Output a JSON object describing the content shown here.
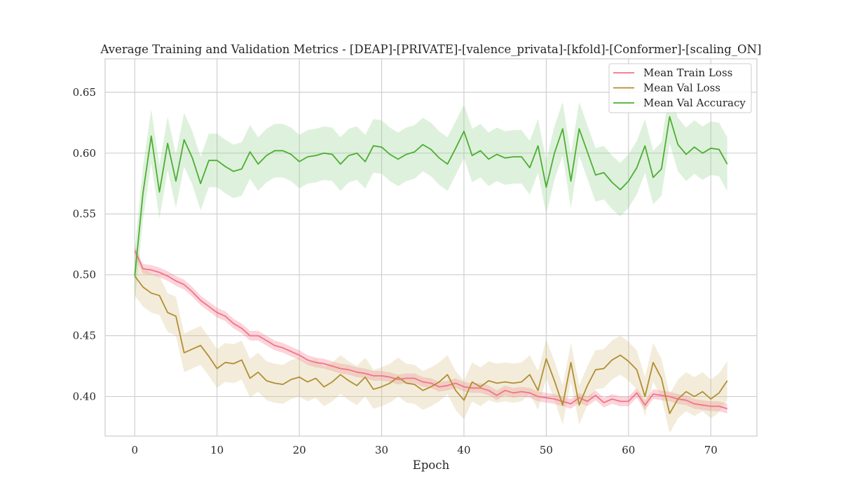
{
  "chart_data": {
    "type": "line",
    "title": "Average Training and Validation Metrics - [DEAP]-[PRIVATE]-[valence_privata]-[kfold]-[Conformer]-[scaling_ON]",
    "xlabel": "Epoch",
    "ylabel": "",
    "xlim": [
      -3.6,
      75.6
    ],
    "ylim": [
      0.3675,
      0.6775
    ],
    "xticks": [
      0,
      10,
      20,
      30,
      40,
      50,
      60,
      70
    ],
    "yticks": [
      0.4,
      0.45,
      0.5,
      0.55,
      0.6,
      0.65
    ],
    "xtick_labels": [
      "0",
      "10",
      "20",
      "30",
      "40",
      "50",
      "60",
      "70"
    ],
    "ytick_labels": [
      "0.40",
      "0.45",
      "0.50",
      "0.55",
      "0.60",
      "0.65"
    ],
    "grid": true,
    "legend_position": "top-right",
    "x": [
      0,
      1,
      2,
      3,
      4,
      5,
      6,
      7,
      8,
      9,
      10,
      11,
      12,
      13,
      14,
      15,
      16,
      17,
      18,
      19,
      20,
      21,
      22,
      23,
      24,
      25,
      26,
      27,
      28,
      29,
      30,
      31,
      32,
      33,
      34,
      35,
      36,
      37,
      38,
      39,
      40,
      41,
      42,
      43,
      44,
      45,
      46,
      47,
      48,
      49,
      50,
      51,
      52,
      53,
      54,
      55,
      56,
      57,
      58,
      59,
      60,
      61,
      62,
      63,
      64,
      65,
      66,
      67,
      68,
      69,
      70,
      71,
      72
    ],
    "series": [
      {
        "name": "Mean Train Loss",
        "color": "#f37387",
        "band_color": "#f37387",
        "values": [
          0.52,
          0.505,
          0.504,
          0.502,
          0.499,
          0.495,
          0.492,
          0.486,
          0.479,
          0.474,
          0.469,
          0.466,
          0.46,
          0.456,
          0.45,
          0.45,
          0.446,
          0.442,
          0.44,
          0.437,
          0.434,
          0.43,
          0.428,
          0.427,
          0.425,
          0.423,
          0.422,
          0.42,
          0.419,
          0.417,
          0.417,
          0.416,
          0.414,
          0.415,
          0.415,
          0.412,
          0.411,
          0.408,
          0.409,
          0.411,
          0.408,
          0.407,
          0.407,
          0.405,
          0.401,
          0.405,
          0.403,
          0.404,
          0.403,
          0.4,
          0.399,
          0.398,
          0.396,
          0.394,
          0.399,
          0.396,
          0.401,
          0.395,
          0.398,
          0.396,
          0.396,
          0.403,
          0.393,
          0.402,
          0.401,
          0.4,
          0.398,
          0.397,
          0.394,
          0.393,
          0.392,
          0.392,
          0.39
        ],
        "band": 0.004
      },
      {
        "name": "Mean Val Loss",
        "color": "#b28e32",
        "band_color": "#d8c089",
        "values": [
          0.499,
          0.49,
          0.485,
          0.483,
          0.469,
          0.466,
          0.436,
          0.439,
          0.442,
          0.433,
          0.423,
          0.428,
          0.427,
          0.43,
          0.415,
          0.42,
          0.413,
          0.411,
          0.41,
          0.414,
          0.416,
          0.412,
          0.415,
          0.408,
          0.412,
          0.418,
          0.413,
          0.409,
          0.416,
          0.406,
          0.408,
          0.411,
          0.416,
          0.411,
          0.41,
          0.405,
          0.408,
          0.412,
          0.418,
          0.405,
          0.397,
          0.412,
          0.408,
          0.413,
          0.411,
          0.412,
          0.411,
          0.412,
          0.418,
          0.405,
          0.431,
          0.413,
          0.393,
          0.428,
          0.393,
          0.409,
          0.422,
          0.423,
          0.43,
          0.434,
          0.429,
          0.422,
          0.4,
          0.428,
          0.415,
          0.386,
          0.398,
          0.404,
          0.4,
          0.404,
          0.398,
          0.403,
          0.413
        ],
        "band": 0.016
      },
      {
        "name": "Mean Val Accuracy",
        "color": "#4cae33",
        "band_color": "#93d18a",
        "values": [
          0.499,
          0.567,
          0.614,
          0.568,
          0.608,
          0.577,
          0.611,
          0.596,
          0.575,
          0.594,
          0.594,
          0.589,
          0.585,
          0.587,
          0.601,
          0.591,
          0.598,
          0.602,
          0.602,
          0.599,
          0.593,
          0.597,
          0.598,
          0.6,
          0.599,
          0.591,
          0.598,
          0.6,
          0.593,
          0.606,
          0.605,
          0.599,
          0.595,
          0.599,
          0.601,
          0.607,
          0.603,
          0.596,
          0.591,
          0.604,
          0.618,
          0.598,
          0.602,
          0.595,
          0.599,
          0.596,
          0.597,
          0.597,
          0.588,
          0.606,
          0.572,
          0.6,
          0.62,
          0.577,
          0.62,
          0.601,
          0.582,
          0.584,
          0.576,
          0.57,
          0.577,
          0.588,
          0.606,
          0.58,
          0.587,
          0.63,
          0.607,
          0.599,
          0.605,
          0.6,
          0.604,
          0.603,
          0.591
        ],
        "band": 0.022
      }
    ]
  }
}
